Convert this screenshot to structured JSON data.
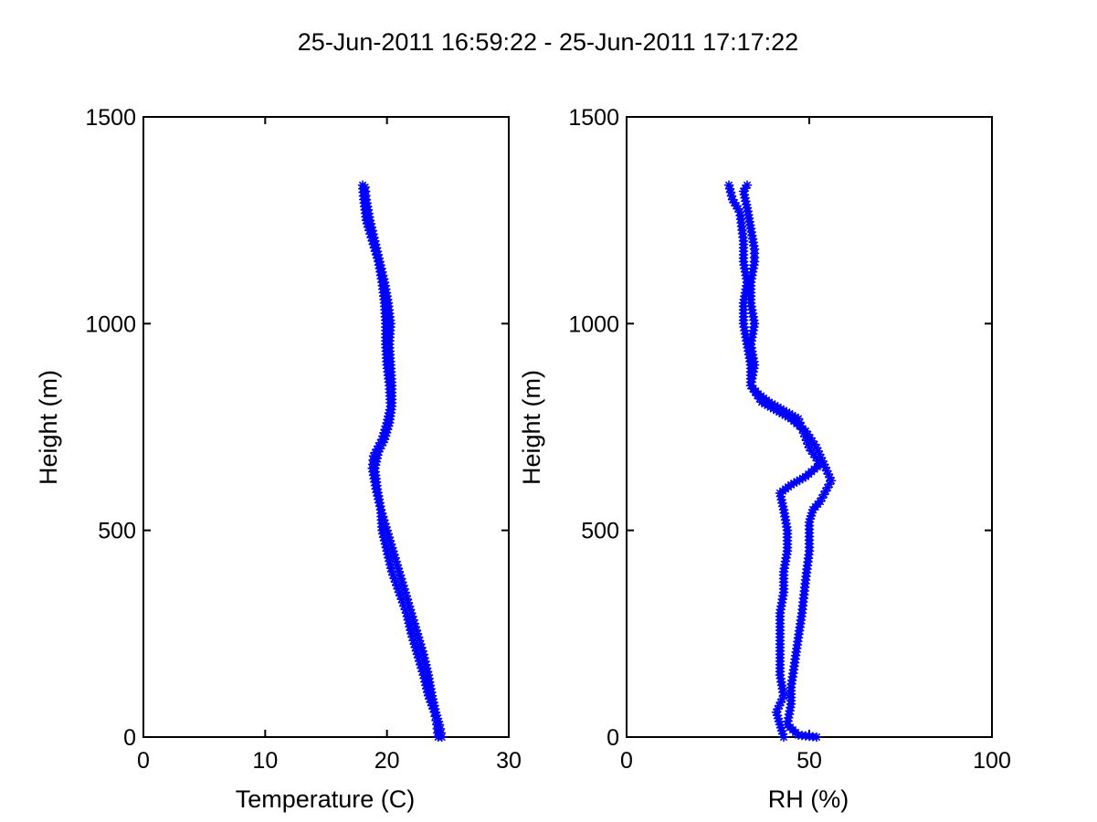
{
  "figure": {
    "title": "25-Jun-2011 16:59:22 - 25-Jun-2011 17:17:22",
    "background": "#ffffff",
    "series_color": "#0000ff"
  },
  "chart_data": [
    {
      "type": "line",
      "marker": "asterisk",
      "xlabel": "Temperature (C)",
      "ylabel": "Height (m)",
      "xlim": [
        0,
        30
      ],
      "ylim": [
        0,
        1500
      ],
      "xticks": [
        "0",
        "10",
        "20",
        "30"
      ],
      "yticks": [
        "0",
        "500",
        "1000",
        "1500"
      ],
      "grid": false,
      "series": [
        {
          "points": [
            [
              24.5,
              0
            ],
            [
              24.3,
              30
            ],
            [
              24.0,
              60
            ],
            [
              23.7,
              100
            ],
            [
              23.4,
              150
            ],
            [
              23.0,
              200
            ],
            [
              22.5,
              250
            ],
            [
              22.0,
              300
            ],
            [
              21.5,
              350
            ],
            [
              21.0,
              400
            ],
            [
              20.5,
              450
            ],
            [
              20.0,
              500
            ],
            [
              19.5,
              550
            ],
            [
              19.2,
              600
            ],
            [
              19.0,
              650
            ],
            [
              19.3,
              690
            ],
            [
              19.8,
              720
            ],
            [
              20.2,
              760
            ],
            [
              20.4,
              800
            ],
            [
              20.4,
              850
            ],
            [
              20.3,
              900
            ],
            [
              20.2,
              950
            ],
            [
              20.3,
              1000
            ],
            [
              20.1,
              1050
            ],
            [
              19.8,
              1100
            ],
            [
              19.4,
              1150
            ],
            [
              19.0,
              1200
            ],
            [
              18.6,
              1250
            ],
            [
              18.3,
              1300
            ],
            [
              18.2,
              1330
            ]
          ]
        },
        {
          "points": [
            [
              18.0,
              1335
            ],
            [
              18.1,
              1300
            ],
            [
              18.3,
              1250
            ],
            [
              18.8,
              1200
            ],
            [
              19.3,
              1150
            ],
            [
              19.6,
              1100
            ],
            [
              19.8,
              1050
            ],
            [
              19.9,
              1000
            ],
            [
              19.9,
              950
            ],
            [
              20.0,
              900
            ],
            [
              20.2,
              850
            ],
            [
              20.3,
              800
            ],
            [
              20.0,
              760
            ],
            [
              19.6,
              720
            ],
            [
              18.9,
              680
            ],
            [
              18.8,
              650
            ],
            [
              19.1,
              600
            ],
            [
              19.5,
              550
            ],
            [
              19.6,
              500
            ],
            [
              20.0,
              450
            ],
            [
              20.4,
              400
            ],
            [
              21.0,
              350
            ],
            [
              21.6,
              300
            ],
            [
              22.0,
              250
            ],
            [
              22.5,
              200
            ],
            [
              23.0,
              150
            ],
            [
              23.4,
              100
            ],
            [
              23.9,
              60
            ],
            [
              24.1,
              30
            ],
            [
              24.2,
              0
            ]
          ]
        }
      ]
    },
    {
      "type": "line",
      "marker": "asterisk",
      "xlabel": "RH (%)",
      "ylabel": "Height (m)",
      "xlim": [
        0,
        100
      ],
      "ylim": [
        0,
        1500
      ],
      "xticks": [
        "0",
        "50",
        "100"
      ],
      "yticks": [
        "0",
        "500",
        "1000",
        "1500"
      ],
      "grid": false,
      "series": [
        {
          "points": [
            [
              52,
              0
            ],
            [
              47,
              5
            ],
            [
              44,
              30
            ],
            [
              45,
              80
            ],
            [
              45,
              120
            ],
            [
              46,
              180
            ],
            [
              47,
              240
            ],
            [
              48,
              300
            ],
            [
              49,
              380
            ],
            [
              50,
              450
            ],
            [
              50,
              520
            ],
            [
              51,
              550
            ],
            [
              53,
              570
            ],
            [
              56,
              620
            ],
            [
              54,
              660
            ],
            [
              52,
              700
            ],
            [
              49,
              740
            ],
            [
              45,
              770
            ],
            [
              41,
              790
            ],
            [
              37,
              810
            ],
            [
              34,
              850
            ],
            [
              35,
              900
            ],
            [
              34,
              950
            ],
            [
              35,
              1000
            ],
            [
              34,
              1050
            ],
            [
              34,
              1100
            ],
            [
              35,
              1150
            ],
            [
              35,
              1180
            ],
            [
              34,
              1230
            ],
            [
              33,
              1280
            ],
            [
              32,
              1320
            ],
            [
              33,
              1335
            ]
          ]
        },
        {
          "points": [
            [
              28,
              1335
            ],
            [
              29,
              1300
            ],
            [
              31,
              1270
            ],
            [
              32,
              1200
            ],
            [
              32,
              1150
            ],
            [
              33,
              1100
            ],
            [
              32,
              1050
            ],
            [
              32,
              1000
            ],
            [
              33,
              950
            ],
            [
              34,
              900
            ],
            [
              34,
              850
            ],
            [
              36,
              830
            ],
            [
              39,
              810
            ],
            [
              43,
              790
            ],
            [
              47,
              770
            ],
            [
              50,
              700
            ],
            [
              53,
              660
            ],
            [
              49,
              630
            ],
            [
              45,
              610
            ],
            [
              42,
              590
            ],
            [
              43,
              550
            ],
            [
              44,
              500
            ],
            [
              44,
              450
            ],
            [
              43,
              400
            ],
            [
              43,
              350
            ],
            [
              42,
              300
            ],
            [
              42,
              250
            ],
            [
              42,
              200
            ],
            [
              42,
              150
            ],
            [
              43,
              100
            ],
            [
              41,
              60
            ],
            [
              42,
              30
            ],
            [
              43,
              0
            ]
          ]
        }
      ]
    }
  ]
}
